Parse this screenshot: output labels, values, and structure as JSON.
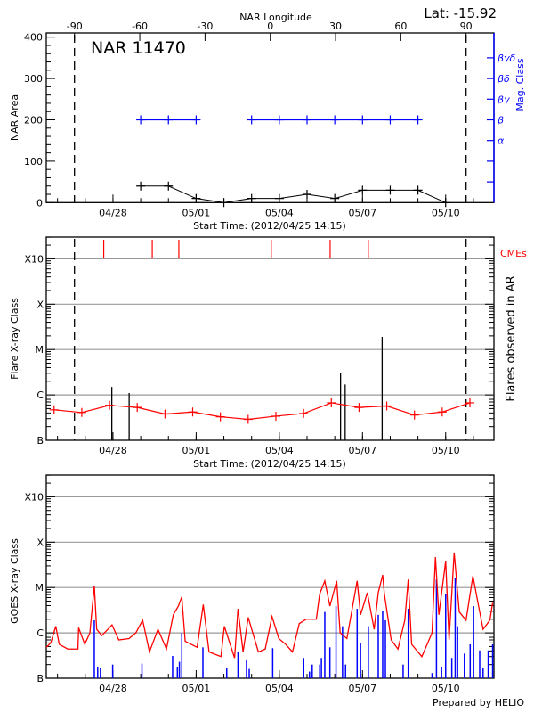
{
  "header": {
    "lat_label": "Lat: -15.92",
    "prepared_by": "Prepared by HELIO"
  },
  "colors": {
    "area": "#000000",
    "mag_class": "#0000ff",
    "flare_avg": "#ff0000",
    "cme": "#ff0000",
    "goes_long": "#ff0000",
    "goes_short": "#0000ff",
    "grid": "#999999"
  },
  "x_axis": {
    "label": "Start Time: (2012/04/25 14:15)",
    "range": [
      "2012-04-25 14:15",
      "2012-05-11 18:00"
    ],
    "tick_labels": [
      "04/28",
      "05/01",
      "05/04",
      "05/07",
      "05/10"
    ],
    "tick_dates": [
      "2012-04-28 00:00",
      "2012-05-01 00:00",
      "2012-05-04 00:00",
      "2012-05-07 00:00",
      "2012-05-10 00:00"
    ],
    "minor": "daily"
  },
  "chart_data": [
    {
      "type": "line",
      "title": "NAR 11470",
      "xlabel": "Start Time: (2012/04/25 14:15)",
      "ylabel": "NAR Area",
      "ylim": [
        0,
        400
      ],
      "y_tick_labels": [
        "0",
        "100",
        "200",
        "300",
        "400"
      ],
      "top_axis": {
        "label": "NAR Longitude",
        "range_deg": [
          -90,
          90
        ],
        "tick_labels": [
          "-90",
          "-60",
          "-30",
          "0",
          "30",
          "60",
          "90"
        ],
        "tick_values": [
          -90,
          -60,
          -30,
          0,
          30,
          60,
          90
        ]
      },
      "limb_markers_longitude": [
        -90,
        90
      ],
      "right_axis": {
        "label": "Mag. Class",
        "tick_labels": [
          "",
          "",
          "α",
          "β",
          "βγ",
          "βδ",
          "βγδ"
        ]
      },
      "x": [
        "2012-04-29 00:00",
        "2012-04-30 00:00",
        "2012-05-01 00:00",
        "2012-05-02 00:00",
        "2012-05-03 00:00",
        "2012-05-04 00:00",
        "2012-05-05 00:00",
        "2012-05-06 00:00",
        "2012-05-07 00:00",
        "2012-05-08 00:00",
        "2012-05-09 00:00",
        "2012-05-10 00:00"
      ],
      "series": [
        {
          "name": "NAR Area",
          "values": [
            40,
            40,
            10,
            0,
            10,
            10,
            20,
            10,
            30,
            30,
            30,
            0
          ]
        },
        {
          "name": "Mag. Class",
          "values": [
            "β",
            "β",
            "β",
            null,
            "β",
            "β",
            "β",
            "β",
            "β",
            "β",
            "β",
            null
          ]
        }
      ]
    },
    {
      "type": "line",
      "xlabel": "Start Time: (2012/04/25 14:15)",
      "ylabel": "Flare X-ray Class",
      "right_label": "Flares observed in AR",
      "cme_label": "CMEs",
      "y_scale": "log",
      "ylim": [
        1e-07,
        0.001
      ],
      "y_tick_labels": [
        "B",
        "C",
        "M",
        "X",
        "X10"
      ],
      "grid": true,
      "average_series": {
        "x": [
          "2012-04-25 21:00",
          "2012-04-26 21:00",
          "2012-04-27 21:00",
          "2012-04-28 21:00",
          "2012-04-29 21:00",
          "2012-04-30 21:00",
          "2012-05-01 21:00",
          "2012-05-02 21:00",
          "2012-05-03 21:00",
          "2012-05-04 21:00",
          "2012-05-05 21:00",
          "2012-05-06 21:00",
          "2012-05-07 21:00",
          "2012-05-08 21:00",
          "2012-05-09 21:00",
          "2012-05-10 21:00"
        ],
        "values": [
          4.7e-07,
          4.1e-07,
          5.9e-07,
          5.3e-07,
          3.8e-07,
          4.2e-07,
          3.3e-07,
          2.9e-07,
          3.4e-07,
          3.9e-07,
          6.7e-07,
          5.3e-07,
          5.7e-07,
          3.6e-07,
          4.2e-07,
          6.7e-07
        ]
      },
      "flares": {
        "x": [
          "2012-04-27 23:00",
          "2012-04-28 14:00",
          "2012-05-06 05:00",
          "2012-05-06 09:00",
          "2012-05-07 17:00"
        ],
        "values": [
          1.5e-06,
          1.1e-06,
          3e-06,
          1.7e-06,
          1.9e-05
        ]
      },
      "cmes": [
        "2012-04-27 16:00",
        "2012-04-29 10:00",
        "2012-04-30 09:00",
        "2012-05-03 17:00",
        "2012-05-05 20:00",
        "2012-05-07 05:00"
      ]
    },
    {
      "type": "line",
      "ylabel": "GOES X-ray Class",
      "y_scale": "log",
      "ylim": [
        1e-07,
        0.001
      ],
      "y_tick_labels": [
        "B",
        "C",
        "M",
        "X",
        "X10"
      ],
      "grid": true,
      "series": [
        {
          "channel": "long",
          "x": [
            "2012-04-25 14:15",
            "2012-04-25 18:06",
            "2012-04-25 22:30",
            "2012-04-26 01:28",
            "2012-04-26 08:50",
            "2012-04-26 17:40",
            "2012-04-26 18:16",
            "2012-04-26 23:34",
            "2012-04-27 04:00",
            "2012-04-27 07:50",
            "2012-04-27 09:53",
            "2012-04-27 14:18",
            "2012-04-27 23:10",
            "2012-04-28 05:02",
            "2012-04-28 13:53",
            "2012-04-28 19:47",
            "2012-04-29 01:41",
            "2012-04-29 07:35",
            "2012-04-29 14:57",
            "2012-04-29 22:19",
            "2012-04-30 04:12",
            "2012-04-30 08:37",
            "2012-04-30 11:34",
            "2012-04-30 14:31",
            "2012-05-01 00:50",
            "2012-05-01 06:09",
            "2012-05-01 11:10",
            "2012-05-01 21:28",
            "2012-05-02 00:24",
            "2012-05-02 09:16",
            "2012-05-02 12:13",
            "2012-05-02 16:38",
            "2012-05-02 21:03",
            "2012-05-03 05:53",
            "2012-05-03 11:47",
            "2012-05-03 17:41",
            "2012-05-03 23:34",
            "2012-05-04 05:28",
            "2012-05-04 11:22",
            "2012-05-04 17:15",
            "2012-05-04 23:10",
            "2012-05-05 08:00",
            "2012-05-05 10:57",
            "2012-05-05 15:22",
            "2012-05-05 19:47",
            "2012-05-06 01:40",
            "2012-05-06 04:38",
            "2012-05-06 10:31",
            "2012-05-06 19:22",
            "2012-05-06 22:19",
            "2012-05-07 04:12",
            "2012-05-07 10:06",
            "2012-05-07 13:38",
            "2012-05-07 17:28",
            "2012-05-07 18:56",
            "2012-05-08 00:50",
            "2012-05-08 06:43",
            "2012-05-08 12:37",
            "2012-05-08 15:35",
            "2012-05-08 18:31",
            "2012-05-09 03:22",
            "2012-05-09 12:12",
            "2012-05-09 15:09",
            "2012-05-09 18:06",
            "2012-05-10 00:00",
            "2012-05-10 02:57",
            "2012-05-10 07:21",
            "2012-05-10 11:47",
            "2012-05-10 17:40",
            "2012-05-10 23:34",
            "2012-05-11 05:28",
            "2012-05-11 08:24",
            "2012-05-11 14:18",
            "2012-05-11 16:40"
          ],
          "values": [
            4.8e-07,
            6e-07,
            1.4e-06,
            5.6e-07,
            4.4e-07,
            4.4e-07,
            1.3e-06,
            5.6e-07,
            1e-06,
            1.1e-05,
            1.2e-06,
            8.7e-07,
            1.5e-06,
            7e-07,
            7.5e-07,
            1e-06,
            1.9e-06,
            3.8e-07,
            1.2e-06,
            4.4e-07,
            2.5e-06,
            3.9e-06,
            6.2e-06,
            6.5e-07,
            4.8e-07,
            4.2e-06,
            3.8e-07,
            3e-07,
            1.4e-06,
            2.8e-07,
            3.4e-06,
            3.8e-07,
            2.2e-06,
            3.8e-07,
            4.4e-07,
            2.3e-06,
            7.5e-07,
            5.6e-07,
            3.8e-07,
            1.6e-06,
            2e-06,
            2e-06,
            7.2e-06,
            1.4e-05,
            3.9e-06,
            1.4e-05,
            1e-06,
            7.5e-07,
            1.4e-05,
            2.5e-06,
            7.7e-06,
            1.2e-06,
            7.7e-06,
            1.9e-05,
            7.2e-06,
            7e-07,
            4.4e-07,
            1.9e-06,
            1.5e-05,
            5.6e-07,
            3e-07,
            1e-06,
            4.7e-05,
            2.5e-06,
            3.8e-05,
            7e-07,
            5.9e-05,
            2.9e-06,
            1.9e-06,
            1.8e-05,
            2.9e-06,
            1.2e-06,
            1.9e-06,
            4.6e-06
          ]
        },
        {
          "channel": "short",
          "x": [
            "2012-04-27 07:50",
            "2012-04-27 10:46",
            "2012-04-27 13:08",
            "2012-04-27 23:44",
            "2012-04-29 01:05",
            "2012-04-30 03:37",
            "2012-04-30 07:45",
            "2012-04-30 09:30",
            "2012-04-30 11:34",
            "2012-05-01 05:51",
            "2012-05-02 02:28",
            "2012-05-02 12:13",
            "2012-05-02 19:35",
            "2012-05-02 21:56",
            "2012-05-03 18:16",
            "2012-05-04 21:06",
            "2012-05-05 02:07",
            "2012-05-05 04:28",
            "2012-05-05 10:57",
            "2012-05-05 12:25",
            "2012-05-05 15:22",
            "2012-05-05 19:47",
            "2012-05-06 01:05",
            "2012-05-06 06:42",
            "2012-05-06 09:20",
            "2012-05-06 19:22",
            "2012-05-06 22:19",
            "2012-05-07 05:05",
            "2012-05-07 13:38",
            "2012-05-07 17:28",
            "2012-05-07 19:49",
            "2012-05-08 11:10",
            "2012-05-08 15:35",
            "2012-05-09 12:12",
            "2012-05-09 16:02",
            "2012-05-09 20:27",
            "2012-05-10 00:00",
            "2012-05-10 05:18",
            "2012-05-10 08:15",
            "2012-05-10 10:19",
            "2012-05-10 16:12",
            "2012-05-10 21:13",
            "2012-05-11 00:10",
            "2012-05-11 05:28",
            "2012-05-11 08:24",
            "2012-05-11 12:50",
            "2012-05-11 16:40"
          ],
          "values": [
            1.9e-06,
            1.8e-07,
            1.7e-07,
            2e-07,
            2.1e-07,
            3.1e-07,
            1.8e-07,
            2.3e-07,
            1e-06,
            4.8e-07,
            1.7e-07,
            3.8e-07,
            2.6e-07,
            1.6e-07,
            4.6e-07,
            2.8e-07,
            1.4e-07,
            2e-07,
            2e-07,
            2.8e-07,
            2.9e-06,
            4.8e-07,
            3.9e-06,
            1.4e-06,
            2e-07,
            3.4e-06,
            6e-07,
            1.4e-06,
            2.5e-06,
            3.1e-06,
            1.9e-06,
            2e-07,
            3.4e-06,
            1.3e-07,
            1.5e-05,
            1.8e-07,
            7.2e-06,
            2.8e-07,
            1.6e-05,
            1.4e-06,
            3.5e-07,
            5.6e-07,
            3.9e-06,
            4.1e-07,
            1.7e-07,
            4.1e-07,
            5.6e-07
          ]
        }
      ]
    }
  ]
}
